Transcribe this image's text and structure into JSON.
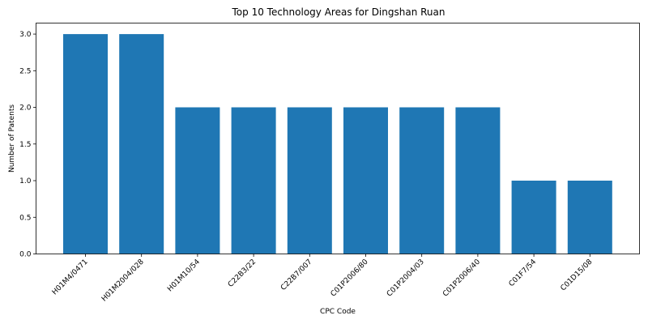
{
  "chart_data": {
    "type": "bar",
    "title": "Top 10 Technology Areas for Dingshan Ruan",
    "xlabel": "CPC Code",
    "ylabel": "Number of Patents",
    "categories": [
      "H01M4/0471",
      "H01M2004/028",
      "H01M10/54",
      "C22B3/22",
      "C22B7/007",
      "C01P2006/80",
      "C01P2004/03",
      "C01P2006/40",
      "C01F7/54",
      "C01D15/08"
    ],
    "values": [
      3,
      3,
      2,
      2,
      2,
      2,
      2,
      2,
      1,
      1
    ],
    "yticks": [
      "0.0",
      "0.5",
      "1.0",
      "1.5",
      "2.0",
      "2.5",
      "3.0"
    ],
    "ylim": [
      0,
      3.15
    ],
    "bar_color": "#1f77b4",
    "grid": false,
    "legend": false
  }
}
